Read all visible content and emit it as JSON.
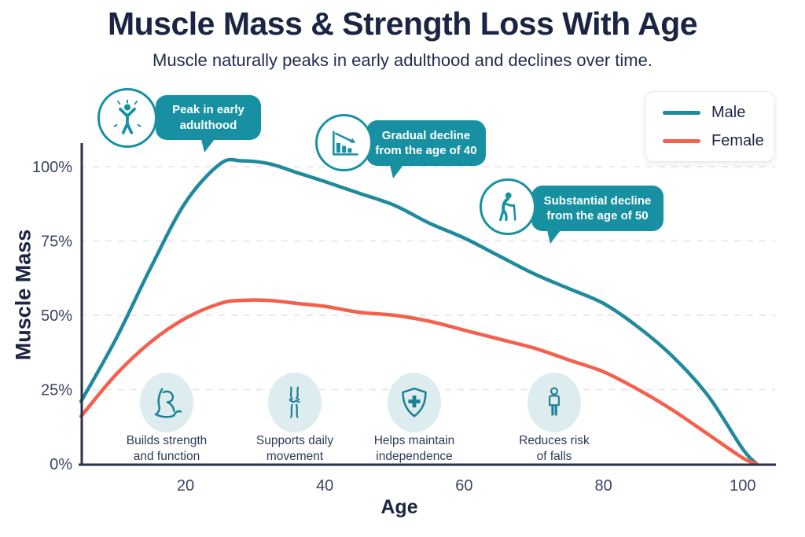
{
  "colors": {
    "navy": "#1b2442",
    "male": "#1f8a9c",
    "female": "#f4604d",
    "bubble": "#1791a2",
    "iconbg": "#ddecef",
    "iconstroke": "#1b7f93",
    "grid": "#e2e4e8",
    "axis": "#2a3147",
    "tick": "#3b4560",
    "caption": "#2d3a55"
  },
  "header": {
    "title": "Muscle Mass & Strength Loss With Age",
    "subtitle": "Muscle naturally peaks in early adulthood and declines over time."
  },
  "legend": {
    "items": [
      {
        "label": "Male",
        "color": "#1f8a9c"
      },
      {
        "label": "Female",
        "color": "#f4604d"
      }
    ]
  },
  "callouts": [
    {
      "icon": "celebration-person-icon",
      "line1": "Peak in early",
      "line2": "adulthood"
    },
    {
      "icon": "declining-bars-icon",
      "line1": "Gradual decline",
      "line2": "from the age of 40"
    },
    {
      "icon": "elderly-cane-icon",
      "line1": "Substantial decline",
      "line2": "from the age of 50"
    }
  ],
  "benefits": [
    {
      "icon": "bicep-icon",
      "line1": "Builds strength",
      "line2": "and function"
    },
    {
      "icon": "knee-joint-icon",
      "line1": "Supports daily",
      "line2": "movement"
    },
    {
      "icon": "shield-cross-icon",
      "line1": "Helps maintain",
      "line2": "independence"
    },
    {
      "icon": "standing-person-icon",
      "line1": "Reduces risk",
      "line2": "of falls"
    }
  ],
  "chart_data": {
    "type": "line",
    "title": "Muscle Mass & Strength Loss With Age",
    "xlabel": "Age",
    "ylabel": "Muscle Mass",
    "xlim": [
      4,
      104
    ],
    "ylim": [
      0,
      105
    ],
    "xticks": [
      20,
      40,
      60,
      80,
      100
    ],
    "yticks": [
      0,
      25,
      50,
      75,
      100
    ],
    "ytick_labels": [
      "0%",
      "25%",
      "50%",
      "75%",
      "100%"
    ],
    "grid": "horizontal-dashed",
    "legend_position": "top-right",
    "x": [
      5,
      10,
      15,
      20,
      25,
      28,
      32,
      36,
      40,
      45,
      50,
      55,
      60,
      65,
      70,
      75,
      80,
      85,
      90,
      95,
      100,
      102
    ],
    "series": [
      {
        "name": "Male",
        "color": "#1f8a9c",
        "values": [
          21,
          42,
          66,
          88,
          101,
          102,
          101,
          98,
          95,
          91,
          87,
          81,
          76,
          70,
          64,
          59,
          54,
          46,
          36,
          23,
          5,
          0
        ]
      },
      {
        "name": "Female",
        "color": "#f4604d",
        "values": [
          16,
          30,
          41,
          49,
          54,
          55,
          55,
          54,
          53,
          51,
          50,
          48,
          45,
          42,
          39,
          35,
          31,
          25,
          18,
          10,
          2,
          0
        ]
      }
    ],
    "annotations": [
      "Peak in early adulthood",
      "Gradual decline from the age of 40",
      "Substantial decline from the age of 50"
    ]
  }
}
